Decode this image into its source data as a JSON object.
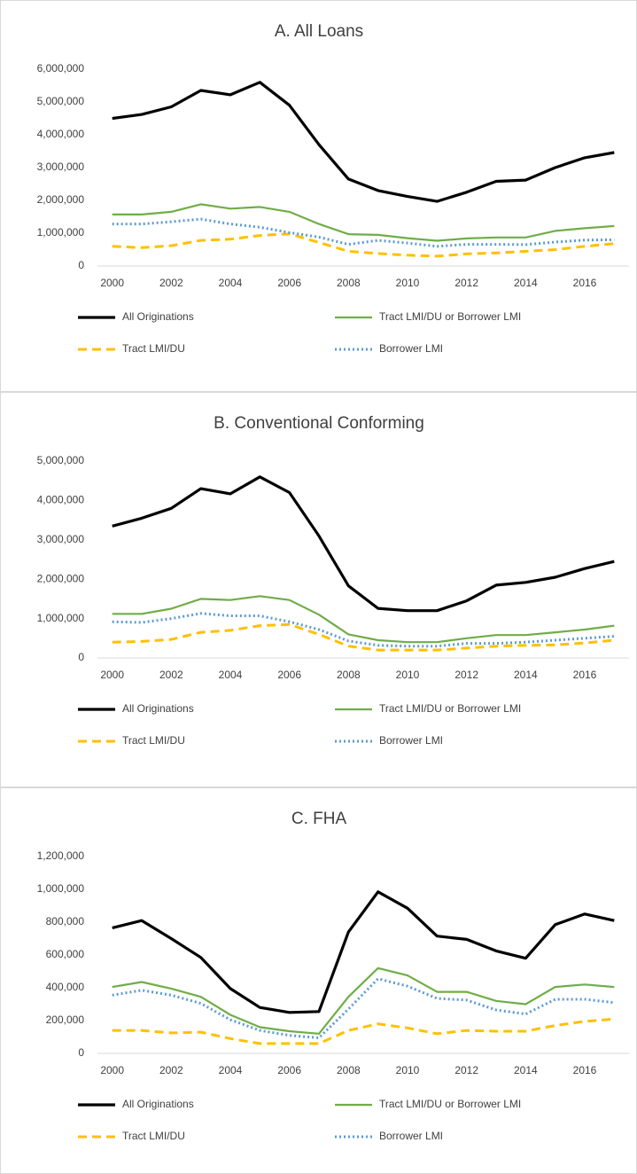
{
  "chart_data": [
    {
      "type": "line",
      "title": "A. All Loans",
      "categories": [
        "2000",
        null,
        "2002",
        null,
        "2004",
        null,
        "2006",
        null,
        "2008",
        null,
        "2010",
        null,
        "2012",
        null,
        "2014",
        null,
        "2016",
        null
      ],
      "ylim": [
        0,
        6000000
      ],
      "yticks": [
        0,
        {
          "value": 1000000,
          "label": "1,000,000"
        },
        {
          "value": 2000000,
          "label": "2,000,000"
        },
        {
          "value": 3000000,
          "label": "3,000,000"
        },
        {
          "value": 4000000,
          "label": "4,000,000"
        },
        {
          "value": 5000000,
          "label": "5,000,000"
        },
        {
          "value": 6000000,
          "label": "6,000,000"
        }
      ],
      "grid": false,
      "series": [
        {
          "name": "All Originations",
          "color": "#000000",
          "style": "solid",
          "values": [
            4500000,
            4620000,
            4850000,
            5350000,
            5220000,
            5600000,
            4900000,
            3700000,
            2650000,
            2300000,
            2120000,
            1970000,
            2250000,
            2580000,
            2620000,
            3000000,
            3300000,
            3460000
          ]
        },
        {
          "name": "Tract LMI/DU or Borrower LMI",
          "color": "#70ad47",
          "style": "solid",
          "values": [
            1570000,
            1570000,
            1650000,
            1880000,
            1750000,
            1800000,
            1650000,
            1280000,
            970000,
            950000,
            850000,
            770000,
            840000,
            870000,
            870000,
            1070000,
            1150000,
            1220000
          ]
        },
        {
          "name": "Tract LMI/DU",
          "color": "#ffc000",
          "style": "dashed",
          "values": [
            600000,
            560000,
            620000,
            780000,
            820000,
            930000,
            980000,
            720000,
            450000,
            380000,
            330000,
            300000,
            370000,
            400000,
            450000,
            500000,
            600000,
            680000
          ]
        },
        {
          "name": "Borrower LMI",
          "color": "#5b9bd5",
          "style": "dotted",
          "values": [
            1280000,
            1280000,
            1350000,
            1430000,
            1280000,
            1180000,
            1020000,
            880000,
            660000,
            780000,
            700000,
            600000,
            660000,
            660000,
            650000,
            730000,
            790000,
            800000
          ]
        }
      ]
    },
    {
      "type": "line",
      "title": "B. Conventional Conforming",
      "categories": [
        "2000",
        null,
        "2002",
        null,
        "2004",
        null,
        "2006",
        null,
        "2008",
        null,
        "2010",
        null,
        "2012",
        null,
        "2014",
        null,
        "2016",
        null
      ],
      "ylim": [
        0,
        5000000
      ],
      "yticks": [
        0,
        {
          "value": 1000000,
          "label": "1,000,000"
        },
        {
          "value": 2000000,
          "label": "2,000,000"
        },
        {
          "value": 3000000,
          "label": "3,000,000"
        },
        {
          "value": 4000000,
          "label": "4,000,000"
        },
        {
          "value": 5000000,
          "label": "5,000,000"
        }
      ],
      "grid": false,
      "series": [
        {
          "name": "All Originations",
          "color": "#000000",
          "style": "solid",
          "values": [
            3350000,
            3550000,
            3800000,
            4300000,
            4170000,
            4600000,
            4200000,
            3100000,
            1830000,
            1260000,
            1200000,
            1200000,
            1450000,
            1850000,
            1920000,
            2050000,
            2270000,
            2450000
          ]
        },
        {
          "name": "Tract LMI/DU or Borrower LMI",
          "color": "#70ad47",
          "style": "solid",
          "values": [
            1120000,
            1120000,
            1250000,
            1500000,
            1470000,
            1570000,
            1470000,
            1100000,
            600000,
            450000,
            400000,
            400000,
            500000,
            580000,
            580000,
            650000,
            720000,
            820000
          ]
        },
        {
          "name": "Tract LMI/DU",
          "color": "#ffc000",
          "style": "dashed",
          "values": [
            400000,
            420000,
            470000,
            650000,
            700000,
            820000,
            850000,
            600000,
            300000,
            200000,
            200000,
            200000,
            250000,
            300000,
            320000,
            330000,
            380000,
            450000
          ]
        },
        {
          "name": "Borrower LMI",
          "color": "#5b9bd5",
          "style": "dotted",
          "values": [
            920000,
            900000,
            1000000,
            1130000,
            1070000,
            1070000,
            920000,
            720000,
            430000,
            320000,
            300000,
            300000,
            370000,
            370000,
            400000,
            450000,
            500000,
            550000
          ]
        }
      ]
    },
    {
      "type": "line",
      "title": "C. FHA",
      "categories": [
        "2000",
        null,
        "2002",
        null,
        "2004",
        null,
        "2006",
        null,
        "2008",
        null,
        "2010",
        null,
        "2012",
        null,
        "2014",
        null,
        "2016",
        null
      ],
      "ylim": [
        0,
        1200000
      ],
      "yticks": [
        0,
        {
          "value": 200000,
          "label": "200,000"
        },
        {
          "value": 400000,
          "label": "400,000"
        },
        {
          "value": 600000,
          "label": "600,000"
        },
        {
          "value": 800000,
          "label": "800,000"
        },
        {
          "value": 1000000,
          "label": "1,000,000"
        },
        {
          "value": 1200000,
          "label": "1,200,000"
        }
      ],
      "grid": false,
      "series": [
        {
          "name": "All Originations",
          "color": "#000000",
          "style": "solid",
          "values": [
            765000,
            810000,
            700000,
            585000,
            395000,
            280000,
            250000,
            255000,
            740000,
            985000,
            885000,
            715000,
            695000,
            625000,
            580000,
            785000,
            850000,
            810000
          ]
        },
        {
          "name": "Tract LMI/DU or Borrower LMI",
          "color": "#70ad47",
          "style": "solid",
          "values": [
            405000,
            435000,
            395000,
            345000,
            235000,
            160000,
            135000,
            120000,
            345000,
            520000,
            475000,
            375000,
            375000,
            320000,
            300000,
            405000,
            420000,
            405000
          ]
        },
        {
          "name": "Tract LMI/DU",
          "color": "#ffc000",
          "style": "dashed",
          "values": [
            140000,
            140000,
            125000,
            130000,
            90000,
            60000,
            60000,
            60000,
            140000,
            180000,
            155000,
            120000,
            140000,
            135000,
            135000,
            170000,
            195000,
            210000
          ]
        },
        {
          "name": "Borrower LMI",
          "color": "#5b9bd5",
          "style": "dotted",
          "values": [
            355000,
            385000,
            355000,
            305000,
            205000,
            140000,
            110000,
            95000,
            270000,
            455000,
            410000,
            335000,
            325000,
            265000,
            240000,
            330000,
            330000,
            310000
          ]
        }
      ]
    }
  ]
}
